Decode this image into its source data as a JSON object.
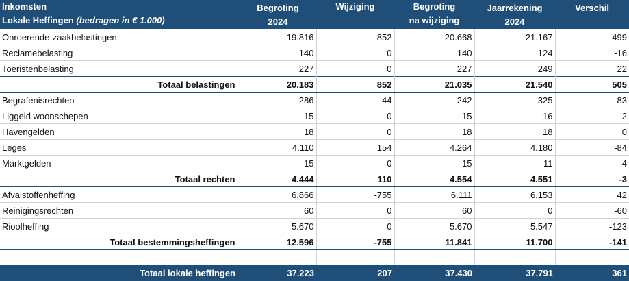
{
  "header": {
    "title_line1": "Inkomsten",
    "title_line2": "Lokale Heffingen",
    "title_note": "(bedragen in € 1.000)",
    "columns": [
      {
        "line1": "Begroting",
        "line2": "2024"
      },
      {
        "line1": "Wijziging",
        "line2": ""
      },
      {
        "line1": "Begroting",
        "line2": "na wijziging"
      },
      {
        "line1": "Jaarrekening",
        "line2": "2024"
      },
      {
        "line1": "",
        "line2": "Verschil"
      }
    ]
  },
  "rows": [
    {
      "label": "Onroerende-zaakbelastingen",
      "values": [
        "19.816",
        "852",
        "20.668",
        "21.167",
        "499"
      ]
    },
    {
      "label": "Reclamebelasting",
      "values": [
        "140",
        "0",
        "140",
        "124",
        "-16"
      ]
    },
    {
      "label": "Toeristenbelasting",
      "values": [
        "227",
        "0",
        "227",
        "249",
        "22"
      ]
    },
    {
      "label": "Totaal belastingen",
      "total": true,
      "values": [
        "20.183",
        "852",
        "21.035",
        "21.540",
        "505"
      ]
    },
    {
      "label": "Begrafenisrechten",
      "values": [
        "286",
        "-44",
        "242",
        "325",
        "83"
      ]
    },
    {
      "label": "Liggeld woonschepen",
      "values": [
        "15",
        "0",
        "15",
        "16",
        "2"
      ]
    },
    {
      "label": "Havengelden",
      "values": [
        "18",
        "0",
        "18",
        "18",
        "0"
      ]
    },
    {
      "label": "Leges",
      "values": [
        "4.110",
        "154",
        "4.264",
        "4.180",
        "-84"
      ]
    },
    {
      "label": "Marktgelden",
      "values": [
        "15",
        "0",
        "15",
        "11",
        "-4"
      ]
    },
    {
      "label": "Totaal rechten",
      "total": true,
      "values": [
        "4.444",
        "110",
        "4.554",
        "4.551",
        "-3"
      ]
    },
    {
      "label": "Afvalstoffenheffing",
      "values": [
        "6.866",
        "-755",
        "6.111",
        "6.153",
        "42"
      ]
    },
    {
      "label": "Reinigingsrechten",
      "values": [
        "60",
        "0",
        "60",
        "0",
        "-60"
      ]
    },
    {
      "label": "Rioolheffing",
      "values": [
        "5.670",
        "0",
        "5.670",
        "5.547",
        "-123"
      ]
    },
    {
      "label": "Totaal bestemmingsheffingen",
      "total": true,
      "values": [
        "12.596",
        "-755",
        "11.841",
        "11.700",
        "-141"
      ]
    }
  ],
  "grand_total": {
    "label": "Totaal lokale heffingen",
    "values": [
      "37.223",
      "207",
      "37.430",
      "37.791",
      "361"
    ]
  },
  "colors": {
    "header_bg": "#1f4e79",
    "header_text": "#ffffff",
    "grid": "#c9d3de"
  }
}
